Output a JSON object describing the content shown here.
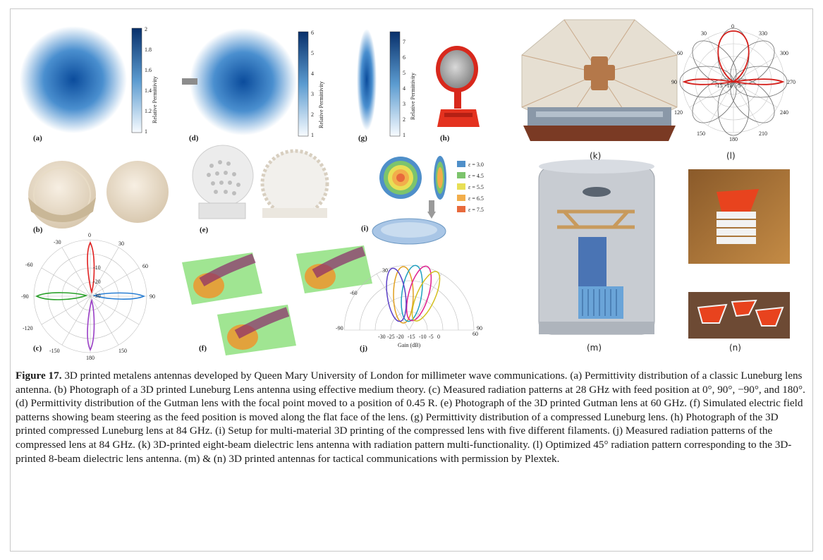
{
  "figure": {
    "panel_labels": {
      "a": "(a)",
      "b": "(b)",
      "c": "(c)",
      "d": "(d)",
      "e": "(e)",
      "f": "(f)",
      "g": "(g)",
      "h": "(h)",
      "i": "(i)",
      "j": "(j)",
      "k": "(k)",
      "l": "(l)",
      "m": "(m)",
      "n": "(n)"
    },
    "colorbar_a": {
      "title": "Relative Permittivity",
      "ticks": [
        "2",
        "1.8",
        "1.6",
        "1.4",
        "1.2",
        "1"
      ]
    },
    "colorbar_d": {
      "title": "Relative Permittivity",
      "ticks": [
        "6",
        "5",
        "4",
        "3",
        "2",
        "1"
      ]
    },
    "colorbar_g": {
      "title": "Relative Permittivity",
      "ticks": [
        "7",
        "6",
        "5",
        "4",
        "3",
        "2",
        "1"
      ]
    },
    "legend_i": [
      "ε = 3.0",
      "ε = 4.5",
      "ε = 5.5",
      "ε = 6.5",
      "ε = 7.5"
    ],
    "legend_i_colors": [
      "#4f8fc9",
      "#7cc46c",
      "#e8df55",
      "#f2ae4b",
      "#e86a3c"
    ],
    "polar_c": {
      "angles": [
        "0",
        "30",
        "60",
        "90",
        "150",
        "180",
        "-150",
        "-120",
        "-90",
        "-60",
        "-30"
      ],
      "rings": [
        "-10",
        "-20",
        "-30"
      ]
    },
    "polar_j": {
      "angles": [
        "30",
        "-60",
        "-90",
        "90",
        "60"
      ],
      "gain_ticks": [
        "-30",
        "-25",
        "-20",
        "-15",
        "-10",
        "-5",
        "0"
      ],
      "xlabel": "Gain (dB)"
    },
    "polar_l": {
      "angles": [
        "0",
        "330",
        "300",
        "270",
        "240",
        "210",
        "180",
        "150",
        "120",
        "90",
        "60",
        "30"
      ],
      "rings": [
        "-10",
        "-15",
        "-5"
      ]
    }
  },
  "caption": {
    "label": "Figure 17.",
    "text": " 3D printed metalens antennas developed by Queen Mary University of London for millimeter wave communications. (a) Permittivity distribution of a classic Luneburg lens antenna. (b) Photograph of a 3D printed Luneburg Lens antenna using effective medium theory. (c) Measured radiation patterns at 28 GHz with feed position at 0°, 90°, −90°, and 180°. (d) Permittivity distribution of the Gutman lens with the focal point moved to a position of 0.45 R. (e) Photograph of the 3D printed Gutman lens at 60 GHz. (f) Simulated electric field patterns showing beam steering as the feed position is moved along the flat face of the lens. (g) Permittivity distribution of a compressed Luneburg lens. (h) Photograph of the 3D printed compressed Luneburg lens at 84 GHz. (i) Setup for multi-material 3D printing of the compressed lens with five different filaments. (j) Measured radiation patterns of the compressed lens at 84 GHz. (k) 3D-printed eight-beam dielectric lens antenna with radiation pattern multi-functionality. (l) Optimized 45° radiation pattern corresponding to the 3D-printed 8-beam dielectric lens antenna. (m) & (n) 3D printed antennas for tactical communications with permission by Plextek."
  }
}
